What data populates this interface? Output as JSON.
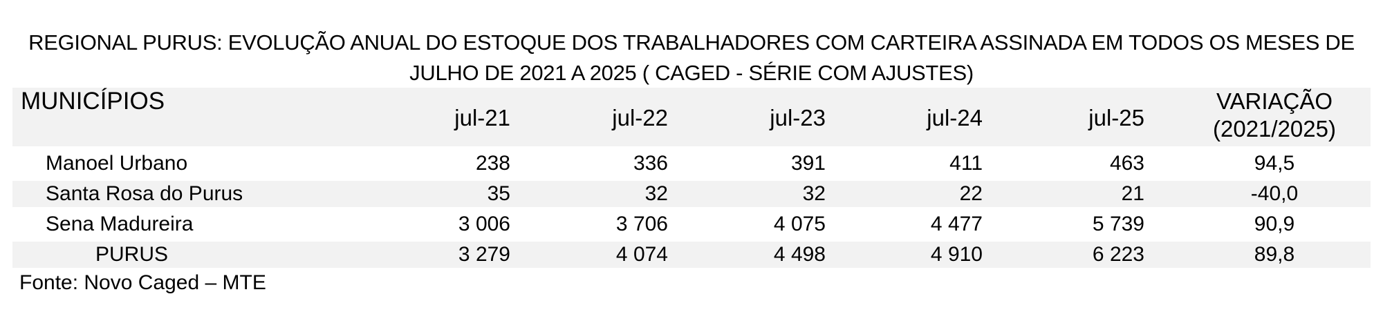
{
  "title": {
    "line1": "REGIONAL PURUS: EVOLUÇÃO ANUAL DO ESTOQUE DOS TRABALHADORES COM CARTEIRA ASSINADA  EM TODOS OS MESES DE",
    "line2": "JULHO DE 2021 A 2025 ( CAGED - SÉRIE COM AJUSTES)"
  },
  "table": {
    "header": {
      "municipios": "MUNICÍPIOS",
      "columns": [
        "jul-21",
        "jul-22",
        "jul-23",
        "jul-24",
        "jul-25"
      ],
      "variacao_line1": "VARIAÇÃO",
      "variacao_line2": "(2021/2025)"
    },
    "rows": [
      {
        "name": "Manoel Urbano",
        "values": [
          "238",
          "336",
          "391",
          "411",
          "463"
        ],
        "variacao": "94,5"
      },
      {
        "name": "Santa Rosa do Purus",
        "values": [
          "35",
          "32",
          "32",
          "22",
          "21"
        ],
        "variacao": "-40,0"
      },
      {
        "name": "Sena Madureira",
        "values": [
          "3 006",
          "3 706",
          "4 075",
          "4 477",
          "5 739"
        ],
        "variacao": "90,9"
      },
      {
        "name": "PURUS",
        "values": [
          "3 279",
          "4 074",
          "4 498",
          "4 910",
          "6 223"
        ],
        "variacao": "89,8"
      }
    ]
  },
  "source": "Fonte: Novo Caged – MTE"
}
